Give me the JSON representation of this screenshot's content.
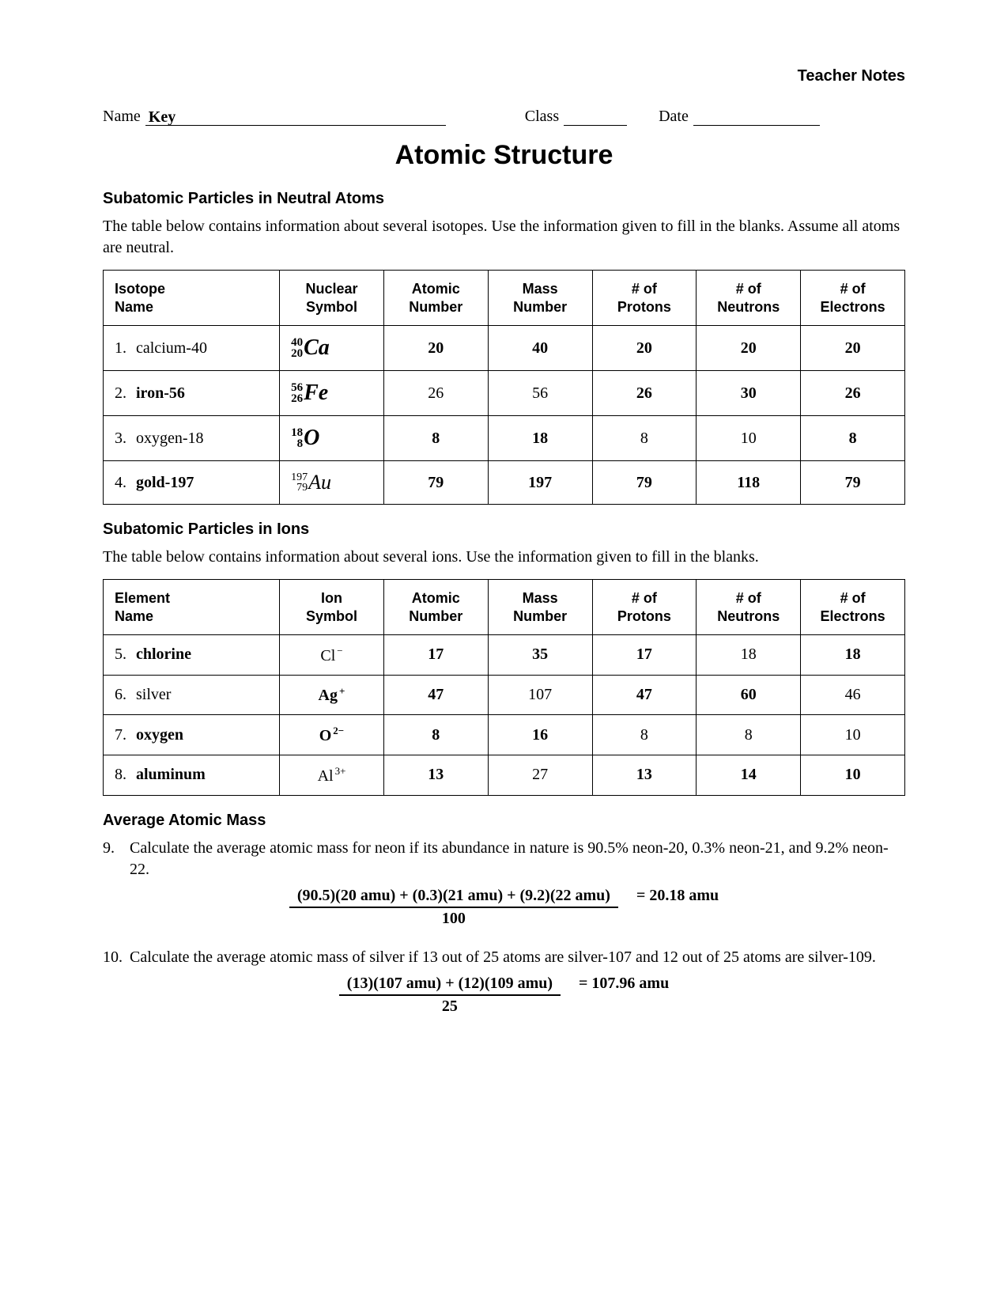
{
  "header_note": "Teacher Notes",
  "fields": {
    "name_label": "Name",
    "name_value": "Key",
    "class_label": "Class",
    "date_label": "Date"
  },
  "title": "Atomic Structure",
  "section1": {
    "heading": "Subatomic Particles in Neutral Atoms",
    "intro": "The table below contains information about several isotopes.  Use the information given to fill in the blanks.  Assume all atoms are neutral.",
    "columns": [
      "Isotope\nName",
      "Nuclear\nSymbol",
      "Atomic\nNumber",
      "Mass\nNumber",
      "# of\nProtons",
      "# of\nNeutrons",
      "# of\nElectrons"
    ],
    "rows": [
      {
        "n": "1.",
        "name": "calcium-40",
        "name_bold": false,
        "mass": "40",
        "z": "20",
        "el": "Ca",
        "sym_bold": true,
        "atomic": "20",
        "atomic_bold": true,
        "massnum": "40",
        "massnum_bold": true,
        "protons": "20",
        "protons_bold": true,
        "neutrons": "20",
        "neutrons_bold": true,
        "electrons": "20",
        "electrons_bold": true
      },
      {
        "n": "2.",
        "name": "iron-56",
        "name_bold": true,
        "mass": "56",
        "z": "26",
        "el": "Fe",
        "sym_bold": true,
        "atomic": "26",
        "atomic_bold": false,
        "massnum": "56",
        "massnum_bold": false,
        "protons": "26",
        "protons_bold": true,
        "neutrons": "30",
        "neutrons_bold": true,
        "electrons": "26",
        "electrons_bold": true
      },
      {
        "n": "3.",
        "name": "oxygen-18",
        "name_bold": false,
        "mass": "18",
        "z": "8",
        "el": "O",
        "sym_bold": true,
        "atomic": "8",
        "atomic_bold": true,
        "massnum": "18",
        "massnum_bold": true,
        "protons": "8",
        "protons_bold": false,
        "neutrons": "10",
        "neutrons_bold": false,
        "electrons": "8",
        "electrons_bold": true
      },
      {
        "n": "4.",
        "name": "gold-197",
        "name_bold": true,
        "mass": "197",
        "z": "79",
        "el": "Au",
        "sym_bold": false,
        "atomic": "79",
        "atomic_bold": true,
        "massnum": "197",
        "massnum_bold": true,
        "protons": "79",
        "protons_bold": true,
        "neutrons": "118",
        "neutrons_bold": true,
        "electrons": "79",
        "electrons_bold": true
      }
    ]
  },
  "section2": {
    "heading": "Subatomic Particles in Ions",
    "intro": "The table below contains information about several ions.  Use the information given to fill in the blanks.",
    "columns": [
      "Element\nName",
      "Ion\nSymbol",
      "Atomic\nNumber",
      "Mass\nNumber",
      "# of\nProtons",
      "# of\nNeutrons",
      "# of\nElectrons"
    ],
    "rows": [
      {
        "n": "5.",
        "name": "chlorine",
        "name_bold": true,
        "el": "Cl",
        "charge": "−",
        "sym_bold": false,
        "atomic": "17",
        "atomic_bold": true,
        "massnum": "35",
        "massnum_bold": true,
        "protons": "17",
        "protons_bold": true,
        "neutrons": "18",
        "neutrons_bold": false,
        "electrons": "18",
        "electrons_bold": true
      },
      {
        "n": "6.",
        "name": "silver",
        "name_bold": false,
        "el": "Ag",
        "charge": "+",
        "sym_bold": true,
        "atomic": "47",
        "atomic_bold": true,
        "massnum": "107",
        "massnum_bold": false,
        "protons": "47",
        "protons_bold": true,
        "neutrons": "60",
        "neutrons_bold": true,
        "electrons": "46",
        "electrons_bold": false
      },
      {
        "n": "7.",
        "name": "oxygen",
        "name_bold": true,
        "el": "O",
        "charge": "2−",
        "sym_bold": true,
        "atomic": "8",
        "atomic_bold": true,
        "massnum": "16",
        "massnum_bold": true,
        "protons": "8",
        "protons_bold": false,
        "neutrons": "8",
        "neutrons_bold": false,
        "electrons": "10",
        "electrons_bold": false
      },
      {
        "n": "8.",
        "name": "aluminum",
        "name_bold": true,
        "el": "Al",
        "charge": "3+",
        "sym_bold": false,
        "atomic": "13",
        "atomic_bold": true,
        "massnum": "27",
        "massnum_bold": false,
        "protons": "13",
        "protons_bold": true,
        "neutrons": "14",
        "neutrons_bold": true,
        "electrons": "10",
        "electrons_bold": true
      }
    ]
  },
  "section3": {
    "heading": "Average Atomic Mass",
    "q9": {
      "n": "9.",
      "text": "Calculate the average atomic mass for neon if its abundance in nature is 90.5% neon-20, 0.3% neon-21, and 9.2% neon-22.",
      "numerator": "(90.5)(20 amu) + (0.3)(21 amu) + (9.2)(22 amu)",
      "denominator": "100",
      "result": "= 20.18 amu"
    },
    "q10": {
      "n": "10.",
      "text": "Calculate the average atomic mass of silver if 13 out of 25 atoms are silver-107 and 12 out of 25 atoms are silver-109.",
      "numerator": "(13)(107 amu) + (12)(109 amu)",
      "denominator": "25",
      "result": "= 107.96 amu"
    }
  }
}
